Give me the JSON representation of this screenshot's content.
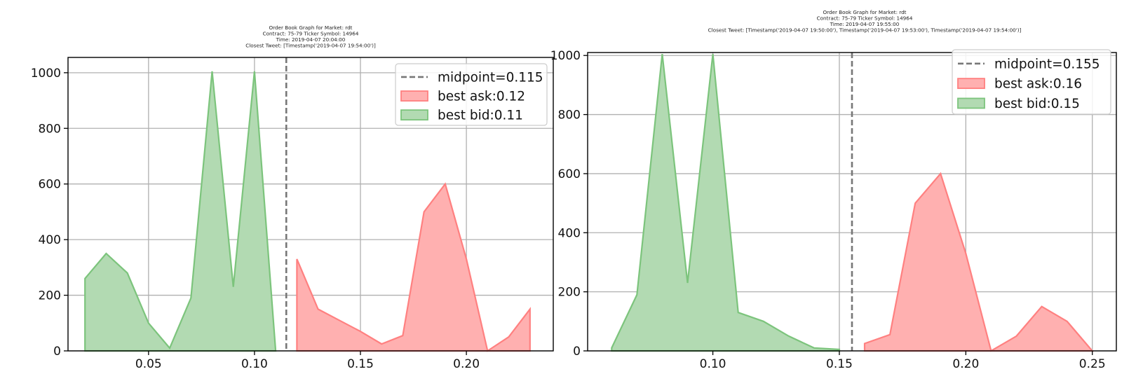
{
  "colors": {
    "ask_fill": "#ffb0b0",
    "ask_edge": "#ff8080",
    "bid_fill": "#b2dab2",
    "bid_edge": "#7cc47c",
    "midpoint": "#777777",
    "grid": "#b0b0b0"
  },
  "chart_data": [
    {
      "type": "area",
      "title_lines": [
        "Order Book Graph for Market: rdt",
        "Contract: 75-79                Ticker Symbol: 14964",
        "Time: 2019-04-07 20:04:00",
        "Closest Tweet: [Timestamp('2019-04-07 19:54:00')]"
      ],
      "xlim": [
        0.012,
        0.241
      ],
      "ylim": [
        0,
        1055
      ],
      "xticks": [
        0.05,
        0.1,
        0.15,
        0.2
      ],
      "xtick_labels": [
        "0.05",
        "0.10",
        "0.15",
        "0.20"
      ],
      "yticks": [
        0,
        200,
        400,
        600,
        800,
        1000
      ],
      "ytick_labels": [
        "0",
        "200",
        "400",
        "600",
        "800",
        "1000"
      ],
      "grid": true,
      "legend_position": "upper-right",
      "midpoint": 0.115,
      "legend": {
        "midpoint": "midpoint=0.115",
        "ask": "best ask:0.12",
        "bid": "best bid:0.11"
      },
      "bid_series": {
        "x": [
          0.02,
          0.03,
          0.04,
          0.05,
          0.06,
          0.07,
          0.08,
          0.09,
          0.1,
          0.11
        ],
        "y": [
          260,
          350,
          280,
          100,
          10,
          190,
          1005,
          230,
          1005,
          0
        ]
      },
      "ask_series": {
        "x": [
          0.12,
          0.13,
          0.14,
          0.15,
          0.16,
          0.17,
          0.18,
          0.19,
          0.2,
          0.21,
          0.22,
          0.23
        ],
        "y": [
          330,
          150,
          110,
          70,
          25,
          55,
          500,
          600,
          330,
          0,
          50,
          150
        ]
      }
    },
    {
      "type": "area",
      "title_lines": [
        "Order Book Graph for Market: rdt",
        "Contract: 75-79                Ticker Symbol: 14964",
        "Time: 2019-04-07 19:55:00",
        "Closest Tweet: [Timestamp('2019-04-07 19:50:00'), Timestamp('2019-04-07 19:53:00'), Timestamp('2019-04-07 19:54:00')]"
      ],
      "xlim": [
        0.0505,
        0.2595
      ],
      "ylim": [
        0,
        1010
      ],
      "xticks": [
        0.1,
        0.15,
        0.2,
        0.25
      ],
      "xtick_labels": [
        "0.10",
        "0.15",
        "0.20",
        "0.25"
      ],
      "yticks": [
        0,
        200,
        400,
        600,
        800,
        1000
      ],
      "ytick_labels": [
        "0",
        "200",
        "400",
        "600",
        "800",
        "1000"
      ],
      "grid": true,
      "legend_position": "upper-right",
      "midpoint": 0.155,
      "legend": {
        "midpoint": "midpoint=0.155",
        "ask": "best ask:0.16",
        "bid": "best bid:0.15"
      },
      "bid_series": {
        "x": [
          0.06,
          0.07,
          0.08,
          0.09,
          0.1,
          0.11,
          0.12,
          0.13,
          0.14,
          0.15
        ],
        "y": [
          10,
          190,
          1005,
          230,
          1005,
          130,
          100,
          50,
          10,
          5
        ]
      },
      "ask_series": {
        "x": [
          0.16,
          0.17,
          0.18,
          0.19,
          0.2,
          0.21,
          0.22,
          0.23,
          0.24,
          0.25
        ],
        "y": [
          25,
          55,
          500,
          600,
          330,
          0,
          50,
          150,
          100,
          0
        ]
      }
    }
  ]
}
